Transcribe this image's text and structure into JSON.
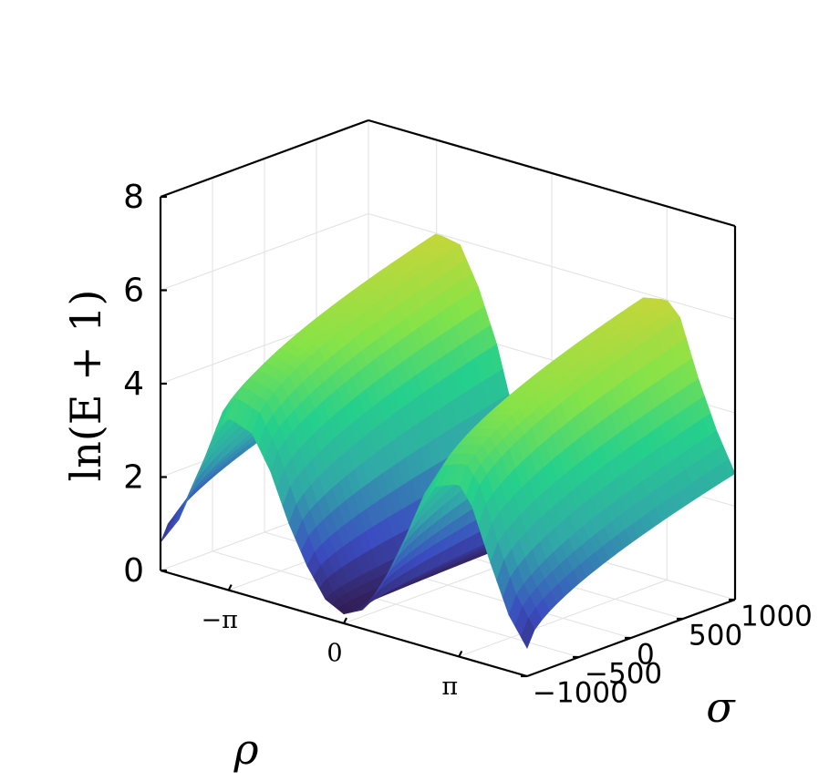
{
  "chart_data": {
    "type": "surface",
    "x_axis": {
      "label": "ρ",
      "range": [
        -5.0,
        5.0
      ],
      "ticks": [
        -3.14159,
        0,
        3.14159
      ],
      "tick_labels": [
        "−π",
        "0",
        "π"
      ]
    },
    "y_axis": {
      "label": "σ",
      "range": [
        -1000,
        1000
      ],
      "ticks": [
        -1000,
        -500,
        0,
        500,
        1000
      ],
      "tick_labels": [
        "−1000",
        "−500",
        "0",
        "500",
        "1000"
      ]
    },
    "z_axis": {
      "label": "ln(E + 1)",
      "range": [
        0,
        8
      ],
      "ticks": [
        0,
        2,
        4,
        6,
        8
      ],
      "tick_labels": [
        "0",
        "2",
        "4",
        "6",
        "8"
      ]
    },
    "surface_profile": {
      "rho": [
        -5.0,
        -4.5,
        -4.0,
        -3.5,
        -3.14159,
        -2.5,
        -2.0,
        -1.5,
        -1.0,
        -0.5,
        0.0,
        0.5,
        1.0,
        1.5,
        2.0,
        2.5,
        3.14159,
        3.5,
        4.0,
        4.5,
        5.0
      ],
      "ln_E_plus_1_at_sigma_max": [
        2.7,
        3.5,
        4.5,
        5.7,
        6.0,
        5.9,
        5.1,
        4.0,
        2.5,
        1.0,
        0.4,
        1.0,
        2.5,
        4.0,
        5.1,
        5.9,
        6.0,
        5.7,
        4.5,
        3.5,
        2.7
      ],
      "ln_E_plus_1_at_sigma_min": [
        0.6,
        1.2,
        2.2,
        3.3,
        3.7,
        3.5,
        2.8,
        1.8,
        1.0,
        0.4,
        0.2,
        0.4,
        1.0,
        1.8,
        2.8,
        3.5,
        3.7,
        3.3,
        2.2,
        1.2,
        0.6
      ]
    },
    "colormap": [
      "#30123b",
      "#3b4cc0",
      "#31a8a8",
      "#25d08c",
      "#86e348",
      "#c4d63a"
    ],
    "grid": true
  }
}
